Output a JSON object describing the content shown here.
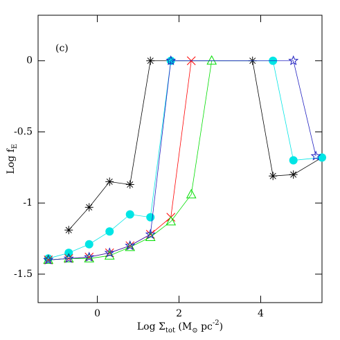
{
  "chart_data": {
    "type": "line",
    "annotation": "(c)",
    "xlabel": [
      {
        "text": "Log Σ"
      },
      {
        "text": "tot",
        "shift": "sub"
      },
      {
        "text": "  (M"
      },
      {
        "text": "⊙",
        "shift": "sub"
      },
      {
        "text": " pc"
      },
      {
        "text": "-2",
        "shift": "sup"
      },
      {
        "text": ")"
      }
    ],
    "ylabel": [
      {
        "text": "Log f"
      },
      {
        "text": "E",
        "shift": "sub"
      }
    ],
    "xlim": [
      -1.45,
      5.5
    ],
    "ylim": [
      -1.7,
      0.32
    ],
    "xticks": [
      0,
      2,
      4
    ],
    "yticks": [
      0,
      -0.5,
      -1,
      -1.5
    ],
    "series": [
      {
        "color": "#000000",
        "marker": "asterisk",
        "x": [
          -0.7,
          -0.2,
          0.3,
          0.8,
          1.3,
          3.8,
          4.3,
          4.8,
          5.5
        ],
        "values": [
          -1.19,
          -1.03,
          -0.85,
          -0.87,
          0,
          0,
          -0.81,
          -0.8,
          -0.68
        ]
      },
      {
        "color": "#00e5e5",
        "marker": "circle",
        "x": [
          -1.2,
          -0.7,
          -0.2,
          0.3,
          0.8,
          1.3,
          1.8,
          4.3,
          4.8,
          5.5
        ],
        "values": [
          -1.39,
          -1.35,
          -1.29,
          -1.2,
          -1.08,
          -1.1,
          0,
          0,
          -0.7,
          -0.68
        ]
      },
      {
        "color": "#ff0000",
        "marker": "cross",
        "x": [
          -1.2,
          -0.7,
          -0.2,
          0.3,
          0.8,
          1.3,
          1.8,
          2.3
        ],
        "values": [
          -1.4,
          -1.39,
          -1.38,
          -1.35,
          -1.3,
          -1.22,
          -1.1,
          0
        ]
      },
      {
        "color": "#00dd00",
        "marker": "triangle",
        "x": [
          -1.2,
          -0.7,
          -0.2,
          0.3,
          0.8,
          1.3,
          1.8,
          2.3,
          2.8
        ],
        "values": [
          -1.4,
          -1.39,
          -1.39,
          -1.37,
          -1.31,
          -1.24,
          -1.13,
          -0.94,
          0
        ]
      },
      {
        "color": "#2020c0",
        "marker": "star",
        "x": [
          -1.2,
          -0.7,
          -0.2,
          0.3,
          0.8,
          1.3,
          1.8,
          4.8,
          5.35
        ],
        "values": [
          -1.4,
          -1.39,
          -1.38,
          -1.35,
          -1.3,
          -1.22,
          0,
          0,
          -0.67
        ]
      }
    ]
  }
}
